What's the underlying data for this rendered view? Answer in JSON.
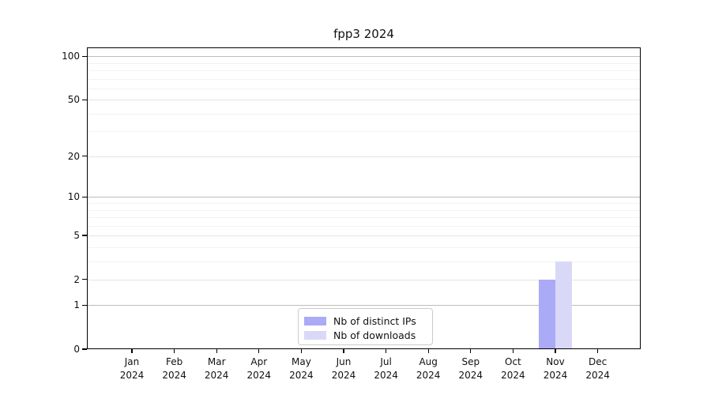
{
  "chart_data": {
    "type": "bar",
    "title": "fpp3 2024",
    "y_scale": "log1p",
    "x_categories": [
      "Jan 2024",
      "Feb 2024",
      "Mar 2024",
      "Apr 2024",
      "May 2024",
      "Jun 2024",
      "Jul 2024",
      "Aug 2024",
      "Sep 2024",
      "Oct 2024",
      "Nov 2024",
      "Dec 2024"
    ],
    "x_tick_line1": [
      "Jan",
      "Feb",
      "Mar",
      "Apr",
      "May",
      "Jun",
      "Jul",
      "Aug",
      "Sep",
      "Oct",
      "Nov",
      "Dec"
    ],
    "x_tick_line2": "2024",
    "series": [
      {
        "name": "Nb of distinct IPs",
        "color": "#aaaaf7",
        "values": [
          0,
          0,
          0,
          0,
          0,
          0,
          0,
          0,
          0,
          0,
          2,
          0
        ]
      },
      {
        "name": "Nb of downloads",
        "color": "#d9d9f7",
        "values": [
          0,
          0,
          0,
          0,
          0,
          0,
          0,
          0,
          0,
          0,
          3,
          0
        ]
      }
    ],
    "y_major_ticks": [
      0,
      1,
      2,
      5,
      10,
      20,
      50,
      100
    ],
    "y_decade_ticks": [
      1,
      10,
      100
    ],
    "y_minor_ticks": [
      3,
      4,
      6,
      7,
      8,
      9,
      30,
      40,
      60,
      70,
      80,
      90
    ],
    "ylim": [
      0,
      115
    ],
    "grid": true,
    "legend_position": "lower center"
  }
}
